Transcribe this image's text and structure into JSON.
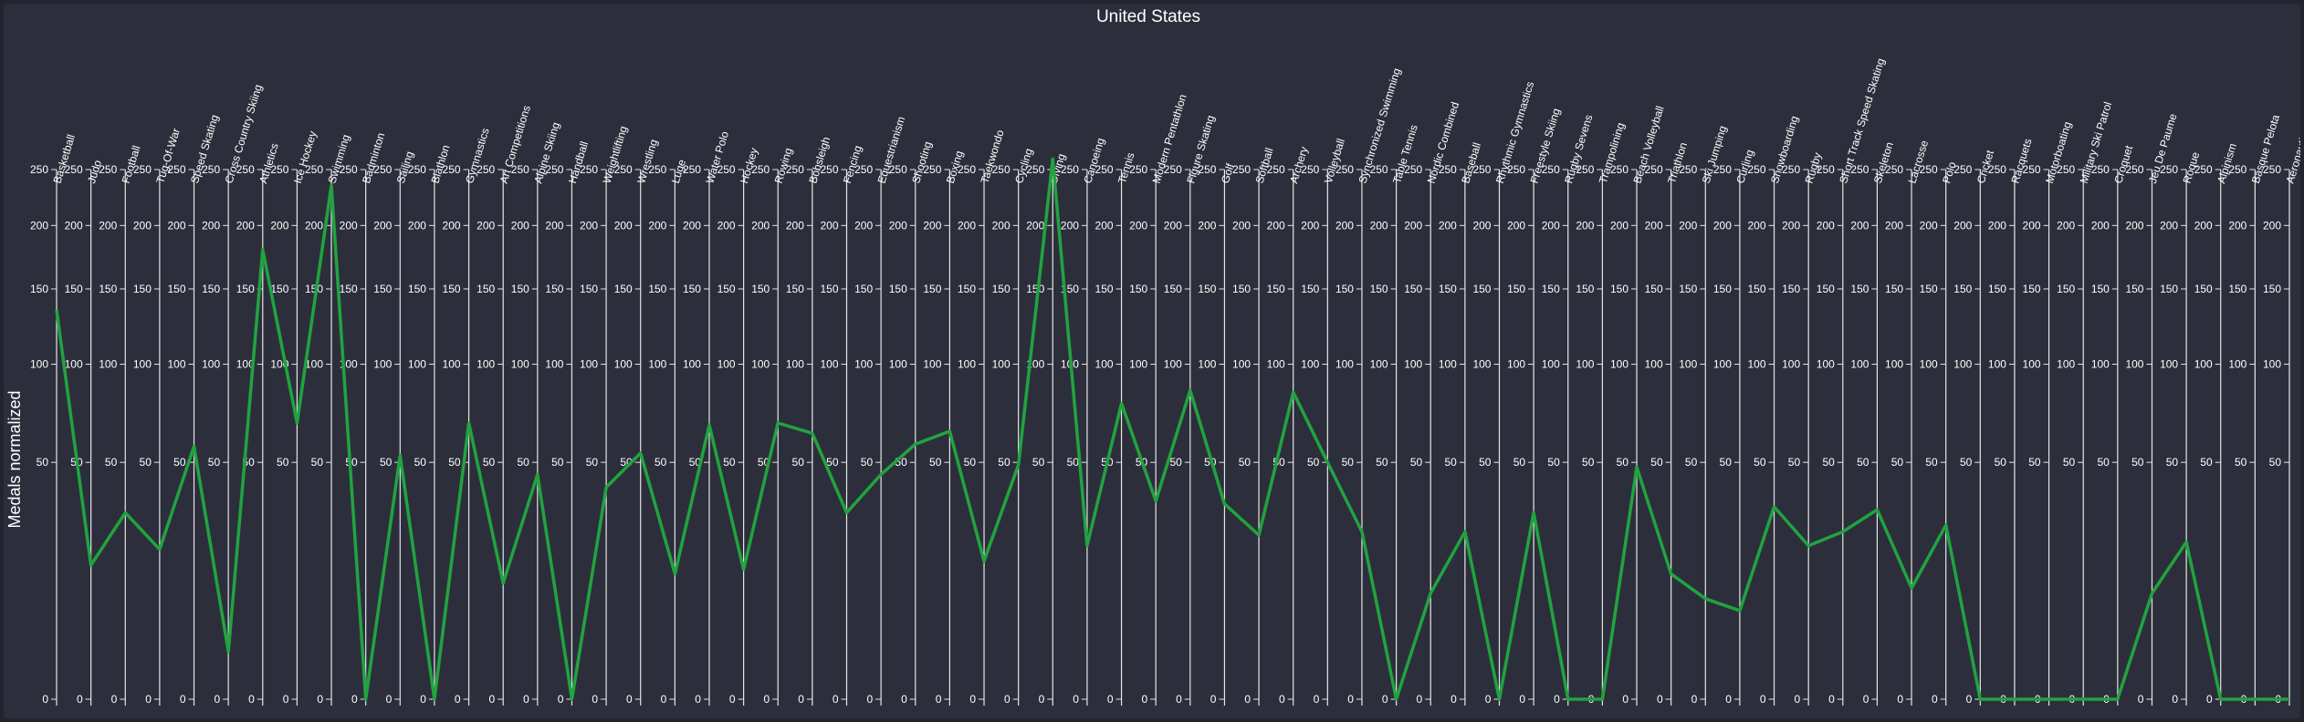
{
  "chart_data": {
    "type": "line",
    "title": "United States",
    "ylabel": "Medals normalized",
    "ylim": [
      0,
      250
    ],
    "scale": "sqrt",
    "y_ticks": [
      0,
      50,
      100,
      150,
      200,
      250
    ],
    "categories": [
      "Basketball",
      "Judo",
      "Football",
      "Tug-Of-War",
      "Speed Skating",
      "Cross Country Skiing",
      "Athletics",
      "Ice Hockey",
      "Swimming",
      "Badminton",
      "Sailing",
      "Biathlon",
      "Gymnastics",
      "Art Competitions",
      "Alpine Skiing",
      "Handball",
      "Weightlifting",
      "Wrestling",
      "Luge",
      "Water Polo",
      "Hockey",
      "Rowing",
      "Bobsleigh",
      "Fencing",
      "Equestrianism",
      "Shooting",
      "Boxing",
      "Taekwondo",
      "Cycling",
      "Diving",
      "Canoeing",
      "Tennis",
      "Modern Pentathlon",
      "Figure Skating",
      "Golf",
      "Softball",
      "Archery",
      "Volleyball",
      "Synchronized Swimming",
      "Table Tennis",
      "Nordic Combined",
      "Baseball",
      "Rhythmic Gymnastics",
      "Freestyle Skiing",
      "Rugby Sevens",
      "Trampolining",
      "Beach Volleyball",
      "Triathlon",
      "Ski Jumping",
      "Curling",
      "Snowboarding",
      "Rugby",
      "Short Track Speed Skating",
      "Skeleton",
      "Lacrosse",
      "Polo",
      "Cricket",
      "Racquets",
      "Motorboating",
      "Military Ski Patrol",
      "Croquet",
      "Jeu De Paume",
      "Roque",
      "Alpinism",
      "Basque Pelota",
      "Aeronautics"
    ],
    "series": [
      {
        "color": "#21a33f",
        "values": [
          135,
          16,
          31,
          20,
          57,
          2,
          180,
          68,
          235,
          0,
          53,
          0,
          68,
          12,
          45,
          0,
          40,
          54,
          14,
          67,
          15,
          68,
          63,
          31,
          45,
          58,
          64,
          17,
          49,
          260,
          21,
          78,
          35,
          85,
          34,
          24,
          84,
          50,
          25,
          0,
          10,
          25,
          0,
          31,
          0,
          0,
          48,
          14,
          9,
          7,
          33,
          21,
          25,
          32,
          11,
          27,
          0,
          0,
          0,
          0,
          0,
          10,
          22,
          0,
          0,
          0
        ]
      }
    ]
  }
}
